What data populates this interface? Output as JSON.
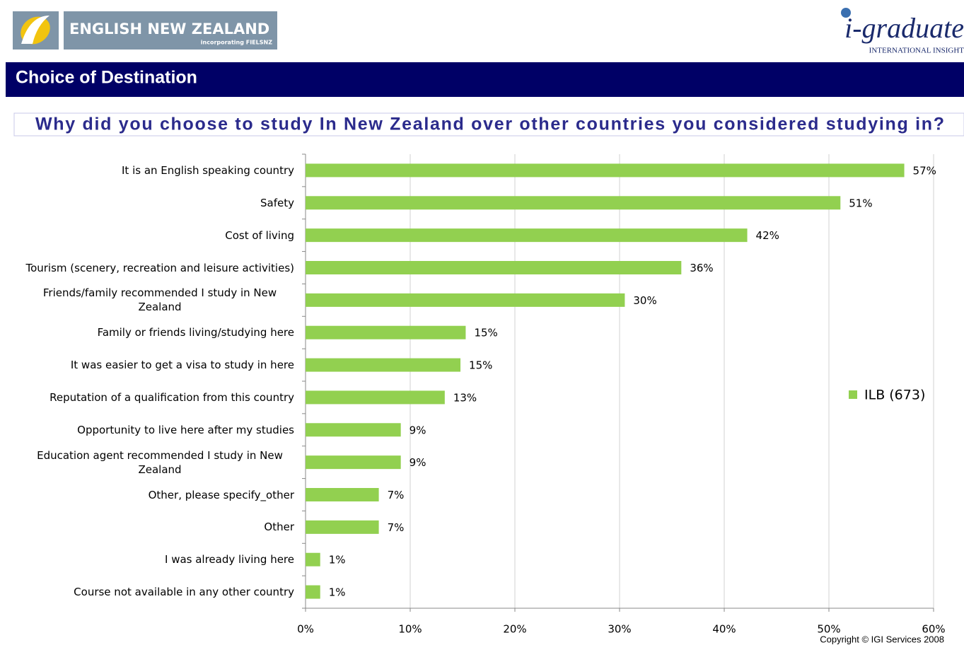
{
  "header": {
    "logo_left": "ENGLISH NEW ZEALAND",
    "logo_left_sub": "incorporating FIELSNZ",
    "logo_right": "i-graduate",
    "logo_right_sub": "INTERNATIONAL INSIGHT",
    "section_title": "Choice of Destination"
  },
  "chart_data": {
    "type": "bar",
    "orientation": "horizontal",
    "title": "Why did you choose to study In New Zealand over other countries you considered studying in?",
    "categories": [
      "It is an English speaking country",
      "Safety",
      "Cost of living",
      "Tourism (scenery, recreation and leisure activities)",
      "Friends/family recommended I study in New Zealand",
      "Family or friends living/studying here",
      "It was easier to get a visa to study in here",
      "Reputation of a qualification from this country",
      "Opportunity to live here after my studies",
      "Education agent recommended I study in New Zealand",
      "Other, please specify_other",
      "Other",
      "I was already living here",
      "Course not available in any other country"
    ],
    "series": [
      {
        "name": "ILB (673)",
        "color": "#92d050",
        "values": [
          57.2,
          51.1,
          42.2,
          35.9,
          30.5,
          15.3,
          14.8,
          13.3,
          9.1,
          9.1,
          7.0,
          7.0,
          1.4,
          1.4
        ],
        "value_labels": [
          "57%",
          "51%",
          "42%",
          "36%",
          "30%",
          "15%",
          "15%",
          "13%",
          "9%",
          "9%",
          "7%",
          "7%",
          "1%",
          "1%"
        ]
      }
    ],
    "xlim": [
      0,
      60
    ],
    "xticks": [
      {
        "value": 0,
        "label": "0%"
      },
      {
        "value": 10,
        "label": "10%"
      },
      {
        "value": 20,
        "label": "20%"
      },
      {
        "value": 30,
        "label": "30%"
      },
      {
        "value": 40,
        "label": "40%"
      },
      {
        "value": 50,
        "label": "50%"
      },
      {
        "value": 60,
        "label": "60%"
      }
    ],
    "grid": true,
    "legend": "right"
  },
  "footer": {
    "copyright": "Copyright © IGI Services 2008"
  }
}
